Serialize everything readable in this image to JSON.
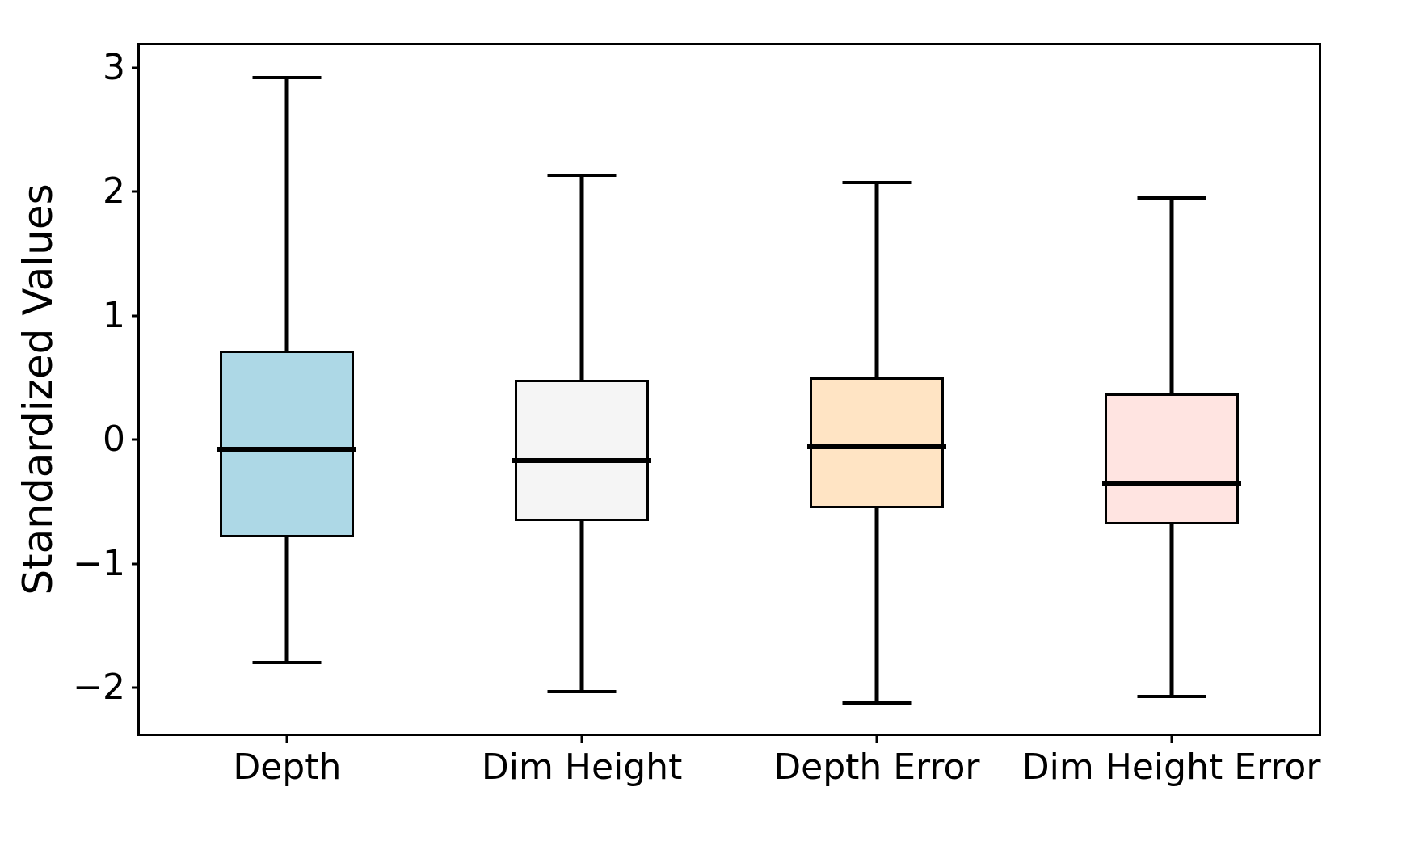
{
  "chart_data": {
    "type": "boxplot",
    "title": "",
    "xlabel": "",
    "ylabel": "Standardized Values",
    "categories": [
      "Depth",
      "Dim Height",
      "Depth Error",
      "Dim Height Error"
    ],
    "ylim": [
      -2.37,
      3.18
    ],
    "yticks": {
      "values": [
        3,
        2,
        1,
        0,
        -1,
        -2
      ],
      "labels": [
        "3",
        "2",
        "1",
        "0",
        "−1",
        "−2"
      ]
    },
    "grid": false,
    "line_color": "#000000",
    "series": [
      {
        "name": "Depth",
        "whisker_low": -1.8,
        "q1": -0.79,
        "median": -0.08,
        "q3": 0.72,
        "whisker_high": 2.92,
        "fill_color": "#ADD8E6"
      },
      {
        "name": "Dim Height",
        "whisker_low": -2.03,
        "q1": -0.66,
        "median": -0.17,
        "q3": 0.48,
        "whisker_high": 2.13,
        "fill_color": "#F5F5F5"
      },
      {
        "name": "Depth Error",
        "whisker_low": -2.12,
        "q1": -0.55,
        "median": -0.06,
        "q3": 0.5,
        "whisker_high": 2.07,
        "fill_color": "#FFE4C4"
      },
      {
        "name": "Dim Height Error",
        "whisker_low": -2.07,
        "q1": -0.68,
        "median": -0.35,
        "q3": 0.37,
        "whisker_high": 1.95,
        "fill_color": "#FFE4E1"
      }
    ]
  }
}
